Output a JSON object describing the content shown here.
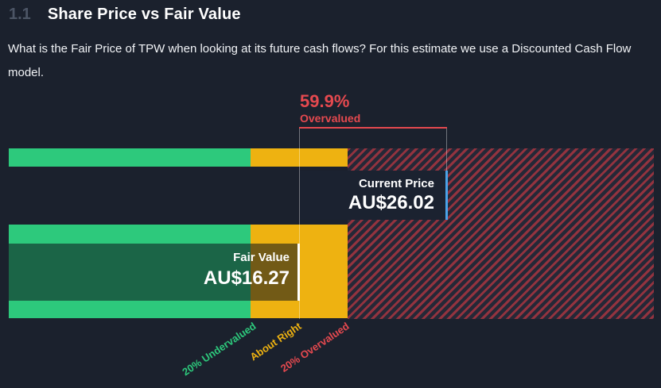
{
  "header": {
    "section_number": "1.1",
    "title": "Share Price vs Fair Value"
  },
  "description": "What is the Fair Price of TPW when looking at its future cash flows? For this estimate we use a Discounted Cash Flow model.",
  "chart_data": {
    "type": "bar",
    "orientation": "horizontal",
    "title": "Share Price vs Fair Value",
    "ticker": "TPW",
    "currency": "AU$",
    "current_price": {
      "label": "Current Price",
      "value": "AU$26.02",
      "amount": 26.02
    },
    "fair_value": {
      "label": "Fair Value",
      "value": "AU$16.27",
      "amount": 16.27
    },
    "overvaluation": {
      "percent": "59.9%",
      "label": "Overvalued"
    },
    "zones": [
      {
        "label": "20% Undervalued",
        "color": "#2dc97c"
      },
      {
        "label": "About Right",
        "color": "#eeb211"
      },
      {
        "label": "20% Overvalued",
        "color": "#e5494f"
      }
    ],
    "legend_position": "bottom"
  },
  "colors": {
    "background": "#1b212d",
    "undervalued_green": "#2dc97c",
    "about_right_yellow": "#eeb211",
    "overvalued_red": "#e5494f",
    "hatch_stripe": "#93333f",
    "current_price_marker_blue": "#4aa3e8",
    "fair_value_marker_white": "#ffffff",
    "section_number_gray": "#4c5565"
  }
}
